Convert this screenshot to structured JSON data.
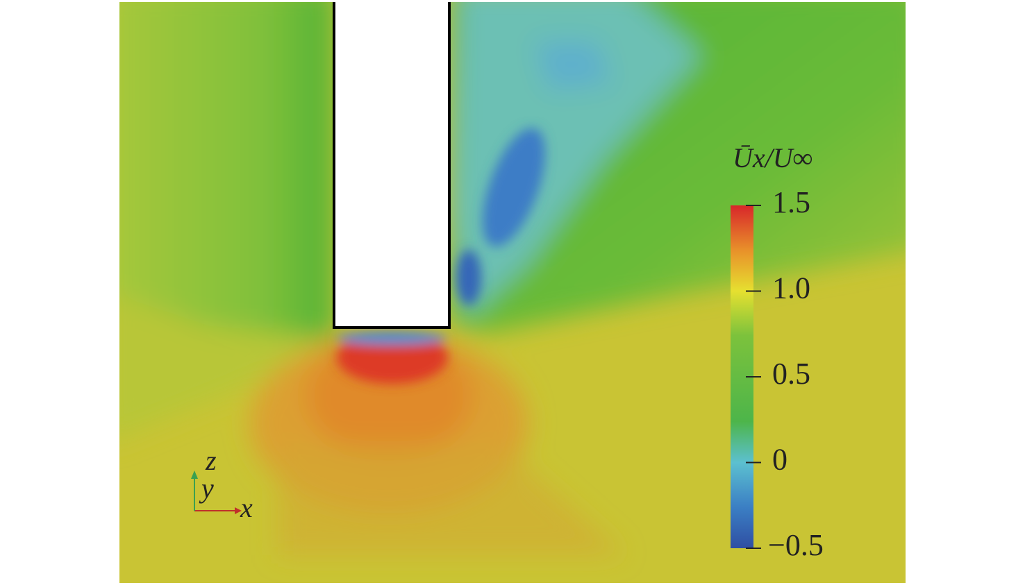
{
  "figure": {
    "colorbar": {
      "title": "Ūx/U∞",
      "range": [
        -0.5,
        1.5
      ],
      "ticks": [
        1.5,
        {
          "value": 1,
          "label": "1.0"
        },
        0.5,
        0,
        {
          "value": -0.5,
          "label": "−0.5"
        }
      ]
    },
    "axes_triad": {
      "x": "x",
      "y": "y",
      "z": "z"
    }
  }
}
